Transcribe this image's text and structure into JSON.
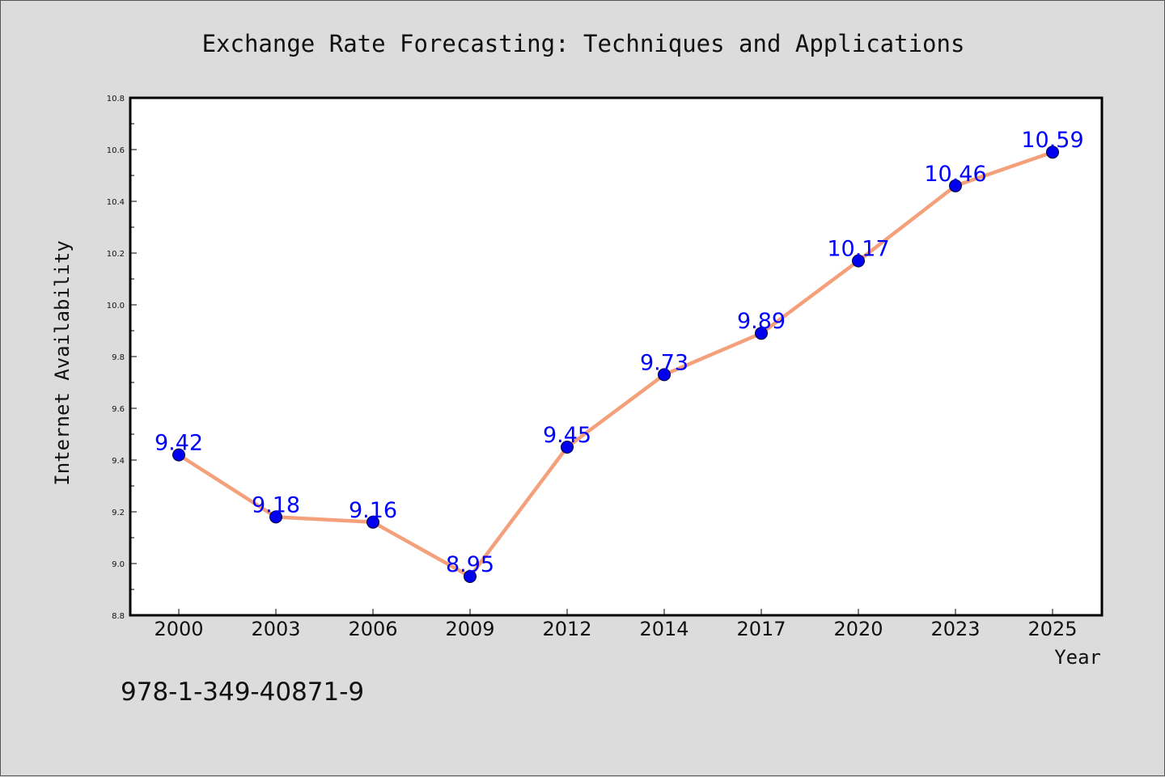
{
  "chart_data": {
    "type": "line",
    "title": "Exchange Rate Forecasting: Techniques and Applications",
    "xlabel": "Year",
    "ylabel": "Internet Availability",
    "categories": [
      "2000",
      "2003",
      "2006",
      "2009",
      "2012",
      "2014",
      "2017",
      "2020",
      "2023",
      "2025"
    ],
    "series": [
      {
        "values": [
          9.42,
          9.18,
          9.16,
          8.95,
          9.45,
          9.73,
          9.89,
          10.17,
          10.46,
          10.59
        ]
      }
    ],
    "data_labels": [
      "9.42",
      "9.18",
      "9.16",
      "8.95",
      "9.45",
      "9.73",
      "9.89",
      "10.17",
      "10.46",
      "10.59"
    ],
    "ylim": [
      8.8,
      10.8
    ],
    "yticks": [
      "8.8",
      "9.0",
      "9.2",
      "9.4",
      "9.6",
      "9.8",
      "10.0",
      "10.2",
      "10.4",
      "10.6",
      "10.8"
    ],
    "grid": false,
    "legend": "none",
    "colors": {
      "line": "#f4a07a",
      "marker_fill": "#0000ee",
      "marker_edge": "#000033",
      "data_label": "#0000ff",
      "background": "#dcdcdc",
      "plot_background": "#ffffff"
    }
  },
  "footnote": "978-1-349-40871-9"
}
